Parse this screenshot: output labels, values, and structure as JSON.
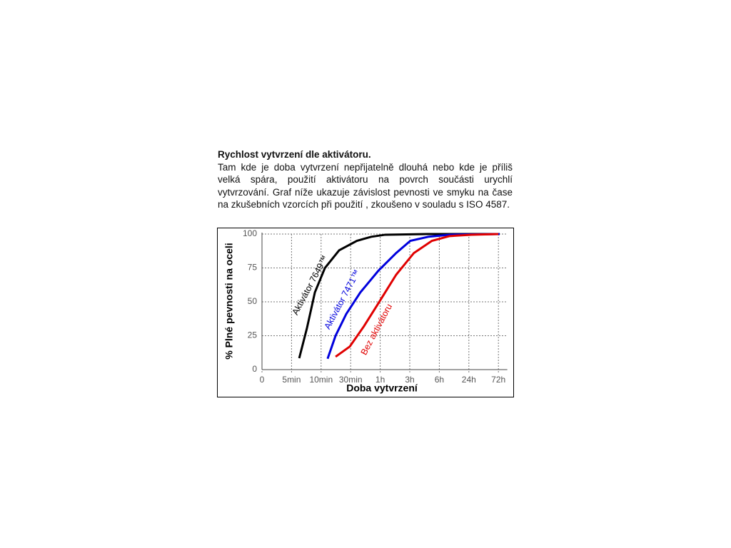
{
  "heading": "Rychlost vytvrzení dle aktivátoru.",
  "paragraph": "Tam kde je doba vytvrzení nepřijatelně dlouhá nebo kde je příliš velká spára, použití aktivátoru na povrch součásti urychlí vytvrzování. Graf níže ukazuje závislost pevnosti ve smyku na čase na zkušebních vzorcích při použití , zkoušeno v souladu s ISO 4587.",
  "chart_data": {
    "type": "line",
    "x_label": "Doba vytvrzení",
    "y_label": "% Plné pevnosti na oceli",
    "xlim": [
      0,
      8.3
    ],
    "ylim": [
      0,
      100
    ],
    "xticks": [
      0,
      {
        "value": 1,
        "label": "5min"
      },
      {
        "value": 2,
        "label": "10min"
      },
      {
        "value": 3,
        "label": "30min"
      },
      {
        "value": 4,
        "label": "1h"
      },
      {
        "value": 5,
        "label": "3h"
      },
      {
        "value": 6,
        "label": "6h"
      },
      {
        "value": 7,
        "label": "24h"
      },
      {
        "value": 8,
        "label": "72h"
      }
    ],
    "yticks": [
      0,
      25,
      50,
      75,
      100
    ],
    "grid": true,
    "series": [
      {
        "name": "Aktivátor 7649™",
        "color": "#000000",
        "x": [
          1.26,
          1.52,
          1.79,
          2.13,
          2.61,
          3.21,
          3.7,
          4.17,
          5.6,
          8.04
        ],
        "values": [
          8.4,
          30.5,
          57,
          75,
          88,
          95,
          98,
          99.5,
          100,
          100
        ]
      },
      {
        "name": "Aktivátor 7471™",
        "color": "#0000dd",
        "x": [
          2.22,
          2.49,
          2.85,
          3.33,
          3.94,
          4.54,
          5.02,
          5.63,
          6.35,
          8.04
        ],
        "values": [
          8,
          25,
          41,
          57,
          73,
          86,
          95,
          98,
          99.5,
          100
        ]
      },
      {
        "name": "Bez aktivátoru",
        "color": "#e00000",
        "x": [
          2.49,
          2.97,
          3.45,
          3.94,
          4.54,
          5.14,
          5.75,
          6.35,
          7.08,
          8.0
        ],
        "values": [
          9.5,
          17,
          32,
          49,
          70,
          86,
          95,
          98.5,
          99.5,
          100
        ]
      }
    ]
  }
}
